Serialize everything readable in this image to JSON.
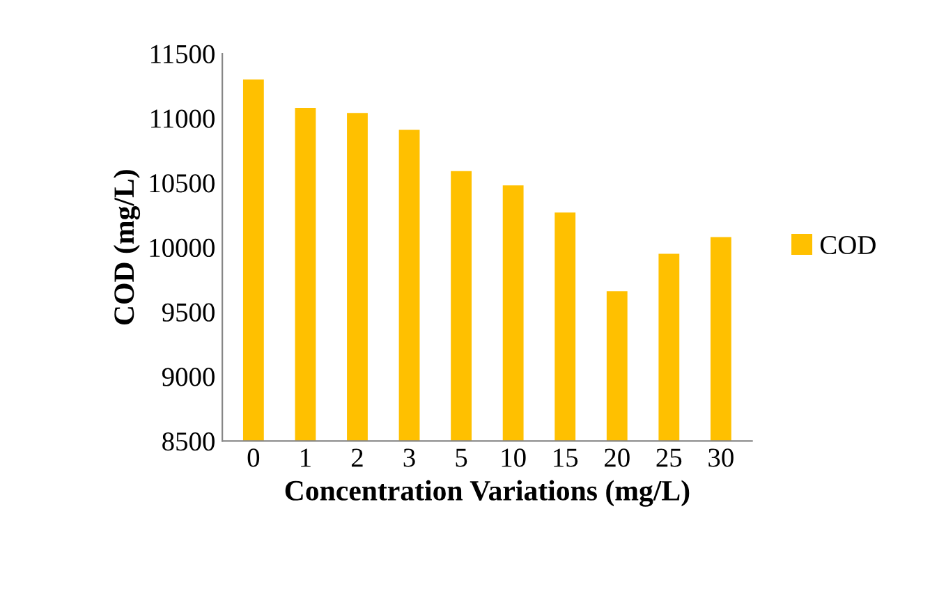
{
  "chart_data": {
    "type": "bar",
    "xlabel": "Concentration Variations (mg/L)",
    "ylabel": "COD (mg/L)",
    "categories": [
      "0",
      "1",
      "2",
      "3",
      "5",
      "10",
      "15",
      "20",
      "25",
      "30"
    ],
    "series": [
      {
        "name": "COD",
        "color": "#ffc000",
        "values": [
          11300,
          11080,
          11040,
          10910,
          10590,
          10480,
          10270,
          9660,
          9950,
          10080
        ]
      }
    ],
    "ylim": [
      8500,
      11500
    ],
    "yticks": [
      8500,
      9000,
      9500,
      10000,
      10500,
      11000,
      11500
    ],
    "grid": false,
    "legend": "right"
  }
}
